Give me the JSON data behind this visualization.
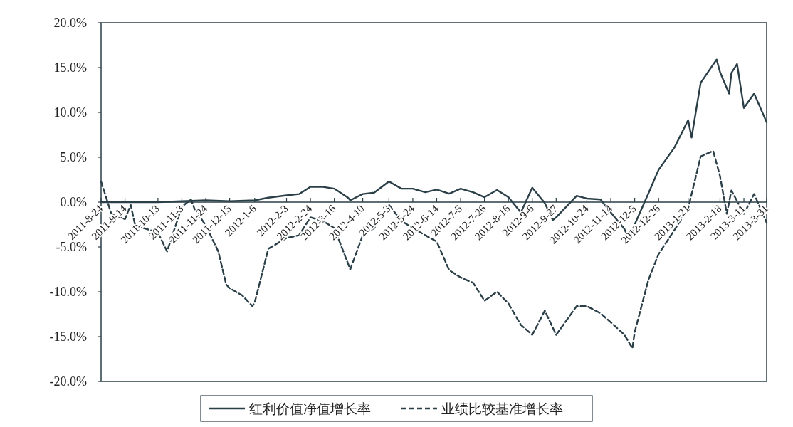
{
  "chart_data": {
    "type": "line",
    "xlim": [
      "2011-08-24",
      "2013-03-31"
    ],
    "xticks": [
      {
        "value": "2011-08-24",
        "label": "2011-8-24"
      },
      {
        "value": "2011-09-14",
        "label": "2011-9-14"
      },
      {
        "value": "2011-10-13",
        "label": "2011-10-13"
      },
      {
        "value": "2011-11-03",
        "label": "2011-11-3"
      },
      {
        "value": "2011-11-24",
        "label": "2011-11-24"
      },
      {
        "value": "2011-12-15",
        "label": "2011-12-15"
      },
      {
        "value": "2012-01-06",
        "label": "2012-1-6"
      },
      {
        "value": "2012-02-03",
        "label": "2012-2-3"
      },
      {
        "value": "2012-02-24",
        "label": "2012-2-24"
      },
      {
        "value": "2012-03-16",
        "label": "2012-3-16"
      },
      {
        "value": "2012-04-10",
        "label": "2012-4-10"
      },
      {
        "value": "2012-05-03",
        "label": "2012-5-3"
      },
      {
        "value": "2012-05-24",
        "label": "2012-5-24"
      },
      {
        "value": "2012-06-14",
        "label": "2012-6-14"
      },
      {
        "value": "2012-07-05",
        "label": "2012-7-5"
      },
      {
        "value": "2012-07-26",
        "label": "2012-7-26"
      },
      {
        "value": "2012-08-16",
        "label": "2012-8-16"
      },
      {
        "value": "2012-09-06",
        "label": "2012-9-6"
      },
      {
        "value": "2012-09-27",
        "label": "2012-9-27"
      },
      {
        "value": "2012-10-24",
        "label": "2012-10-24"
      },
      {
        "value": "2012-11-14",
        "label": "2012-11-14"
      },
      {
        "value": "2012-12-05",
        "label": "2012-12-5"
      },
      {
        "value": "2012-12-26",
        "label": "2012-12-26"
      },
      {
        "value": "2013-01-21",
        "label": "2013-1-21"
      },
      {
        "value": "2013-02-18",
        "label": "2013-2-18"
      },
      {
        "value": "2013-03-11",
        "label": "2013-3-11"
      },
      {
        "value": "2013-03-31",
        "label": "2013-3-31"
      }
    ],
    "ylim": [
      -20,
      20
    ],
    "yticks": [
      {
        "value": 20,
        "label": "20.0%"
      },
      {
        "value": 15,
        "label": "15.0%"
      },
      {
        "value": 10,
        "label": "10.0%"
      },
      {
        "value": 5,
        "label": "5.0%"
      },
      {
        "value": 0,
        "label": "0.0%"
      },
      {
        "value": -5,
        "label": "-5.0%"
      },
      {
        "value": -10,
        "label": "-10.0%"
      },
      {
        "value": -15,
        "label": "-15.0%"
      },
      {
        "value": -20,
        "label": "-20.0%"
      }
    ],
    "legend": "bottom",
    "grid": false,
    "series": [
      {
        "name": "红利价值净值增长率",
        "color": "#2b3f48",
        "line_style": "solid",
        "x": [
          "2011-08-24",
          "2011-09-14",
          "2011-10-13",
          "2011-11-03",
          "2011-11-24",
          "2011-12-15",
          "2012-01-06",
          "2012-01-18",
          "2012-02-03",
          "2012-02-14",
          "2012-02-24",
          "2012-03-06",
          "2012-03-16",
          "2012-03-28",
          "2012-03-30",
          "2012-04-10",
          "2012-04-20",
          "2012-05-03",
          "2012-05-14",
          "2012-05-24",
          "2012-06-04",
          "2012-06-14",
          "2012-06-25",
          "2012-07-05",
          "2012-07-16",
          "2012-07-26",
          "2012-08-06",
          "2012-08-16",
          "2012-08-27",
          "2012-09-06",
          "2012-09-17",
          "2012-09-24",
          "2012-09-27",
          "2012-10-15",
          "2012-10-24",
          "2012-11-05",
          "2012-11-14",
          "2012-11-26",
          "2012-11-30",
          "2012-12-05",
          "2012-12-17",
          "2012-12-26",
          "2013-01-09",
          "2013-01-21",
          "2013-01-24",
          "2013-02-01",
          "2013-02-15",
          "2013-02-18",
          "2013-02-26",
          "2013-02-28",
          "2013-03-05",
          "2013-03-11",
          "2013-03-20",
          "2013-03-31"
        ],
        "values": [
          0.0,
          0.0,
          0.0,
          0.1,
          0.2,
          0.1,
          0.2,
          0.5,
          0.75,
          0.9,
          1.7,
          1.7,
          1.5,
          0.5,
          0.2,
          0.9,
          1.05,
          2.3,
          1.5,
          1.5,
          1.1,
          1.4,
          0.95,
          1.5,
          1.1,
          0.55,
          1.35,
          0.55,
          -1.15,
          1.6,
          -0.1,
          -2.0,
          -1.7,
          0.7,
          0.4,
          0.3,
          -1.15,
          -3.0,
          -4.2,
          -2.5,
          0.95,
          3.6,
          6.1,
          9.15,
          7.2,
          13.3,
          15.9,
          14.5,
          12.1,
          14.4,
          15.4,
          10.5,
          12.1,
          8.9
        ]
      },
      {
        "name": "业绩比较基准增长率",
        "color": "#2b3f48",
        "line_style": "dashed",
        "x": [
          "2011-08-24",
          "2011-09-02",
          "2011-09-14",
          "2011-09-19",
          "2011-09-23",
          "2011-10-13",
          "2011-10-21",
          "2011-11-03",
          "2011-11-11",
          "2011-11-14",
          "2011-11-24",
          "2011-12-05",
          "2011-12-12",
          "2011-12-15",
          "2011-12-26",
          "2012-01-04",
          "2012-01-06",
          "2012-01-18",
          "2012-02-03",
          "2012-02-14",
          "2012-02-24",
          "2012-03-06",
          "2012-03-16",
          "2012-03-30",
          "2012-04-10",
          "2012-04-20",
          "2012-05-03",
          "2012-05-14",
          "2012-05-24",
          "2012-06-04",
          "2012-06-14",
          "2012-06-25",
          "2012-07-05",
          "2012-07-16",
          "2012-07-26",
          "2012-08-06",
          "2012-08-16",
          "2012-08-27",
          "2012-09-06",
          "2012-09-17",
          "2012-09-27",
          "2012-10-15",
          "2012-10-24",
          "2012-11-05",
          "2012-11-14",
          "2012-11-26",
          "2012-12-03",
          "2012-12-05",
          "2012-12-17",
          "2012-12-26",
          "2013-01-09",
          "2013-01-21",
          "2013-02-01",
          "2013-02-12",
          "2013-02-18",
          "2013-02-24",
          "2013-02-28",
          "2013-03-11",
          "2013-03-20",
          "2013-03-31"
        ],
        "values": [
          2.3,
          -1.3,
          -1.9,
          -0.3,
          -2.6,
          -3.4,
          -5.5,
          -0.5,
          0.3,
          -0.7,
          -2.6,
          -5.5,
          -9.2,
          -9.6,
          -10.4,
          -11.6,
          -11.2,
          -5.2,
          -4.0,
          -3.7,
          -1.7,
          -2.1,
          -2.9,
          -7.5,
          -3.7,
          -2.9,
          -0.3,
          -2.1,
          -2.9,
          -3.7,
          -4.4,
          -7.6,
          -8.4,
          -9.0,
          -11.0,
          -10.0,
          -11.3,
          -13.7,
          -14.8,
          -12.1,
          -14.8,
          -11.6,
          -11.6,
          -12.4,
          -13.4,
          -14.8,
          -16.3,
          -14.5,
          -8.7,
          -5.8,
          -3.1,
          -0.7,
          5.1,
          5.7,
          2.9,
          -1.3,
          1.3,
          -1.3,
          0.9,
          -2.3
        ]
      }
    ]
  }
}
